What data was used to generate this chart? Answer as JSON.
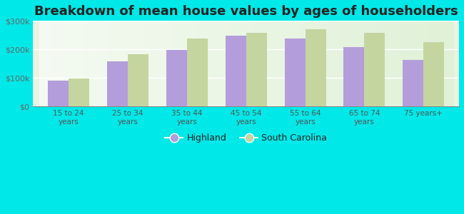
{
  "title": "Breakdown of mean house values by ages of householders",
  "categories": [
    "15 to 24\nyears",
    "25 to 34\nyears",
    "35 to 44\nyears",
    "45 to 54\nyears",
    "55 to 64\nyears",
    "65 to 74\nyears",
    "75 years+"
  ],
  "highland": [
    91000,
    157000,
    197000,
    248000,
    237000,
    208000,
    163000
  ],
  "south_carolina": [
    97000,
    183000,
    237000,
    259000,
    270000,
    258000,
    225000
  ],
  "highland_color": "#b39ddb",
  "sc_color": "#c5d5a0",
  "background_color": "#00e8e8",
  "plot_bg_color": "#e8f5e2",
  "ylim": [
    0,
    300000
  ],
  "yticks": [
    0,
    100000,
    200000,
    300000
  ],
  "ytick_labels": [
    "$0",
    "$100k",
    "$200k",
    "$300k"
  ],
  "legend_highland": "Highland",
  "legend_sc": "South Carolina",
  "title_fontsize": 13,
  "bar_width": 0.35
}
